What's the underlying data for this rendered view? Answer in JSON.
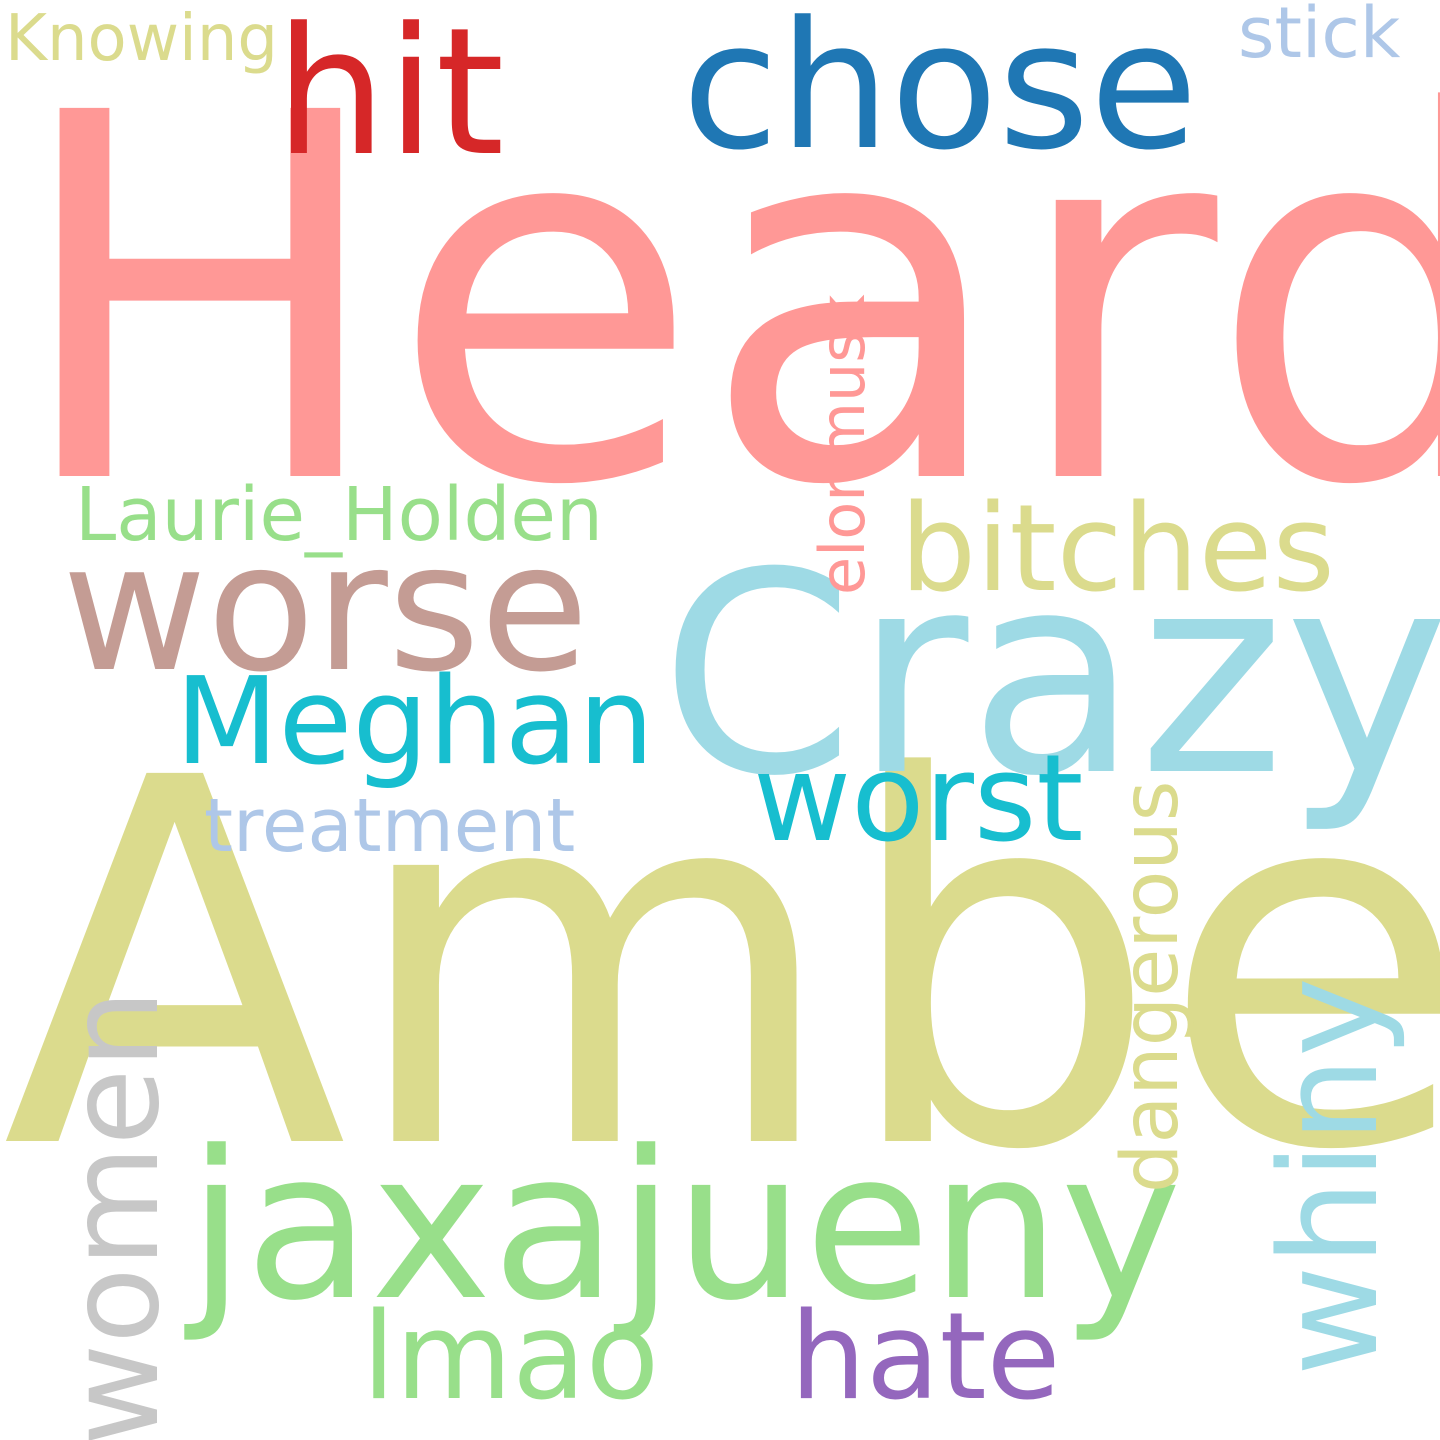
{
  "words": {
    "heard": {
      "text": "Heard",
      "color": "#ff9896"
    },
    "amber": {
      "text": "Amber",
      "color": "#dbdb8d"
    },
    "crazy": {
      "text": "Crazy",
      "color": "#9edae5"
    },
    "jaxajueny": {
      "text": "jaxajueny",
      "color": "#98df8a"
    },
    "worse": {
      "text": "worse",
      "color": "#c49c94"
    },
    "chose": {
      "text": "chose",
      "color": "#1f77b4"
    },
    "hit": {
      "text": "hit",
      "color": "#d62728"
    },
    "meghan": {
      "text": "Meghan",
      "color": "#17becf"
    },
    "worst": {
      "text": "worst",
      "color": "#17becf"
    },
    "hate": {
      "text": "hate",
      "color": "#9467bd"
    },
    "lmao": {
      "text": "lmao",
      "color": "#98df8a"
    },
    "bitches": {
      "text": "bitches",
      "color": "#dbdb8d"
    },
    "laurie": {
      "text": "Laurie_Holden",
      "color": "#98df8a"
    },
    "treatment": {
      "text": "treatment",
      "color": "#aec7e8"
    },
    "knowing": {
      "text": "Knowing",
      "color": "#dbdb8d"
    },
    "stick": {
      "text": "stick",
      "color": "#aec7e8"
    },
    "elonmusk": {
      "text": "elonmusk",
      "color": "#ff9896"
    },
    "dangerous": {
      "text": "dangerous",
      "color": "#dbdb8d"
    },
    "whiny": {
      "text": "whiny",
      "color": "#9edae5"
    },
    "women": {
      "text": "women",
      "color": "#c7c7c7"
    }
  }
}
